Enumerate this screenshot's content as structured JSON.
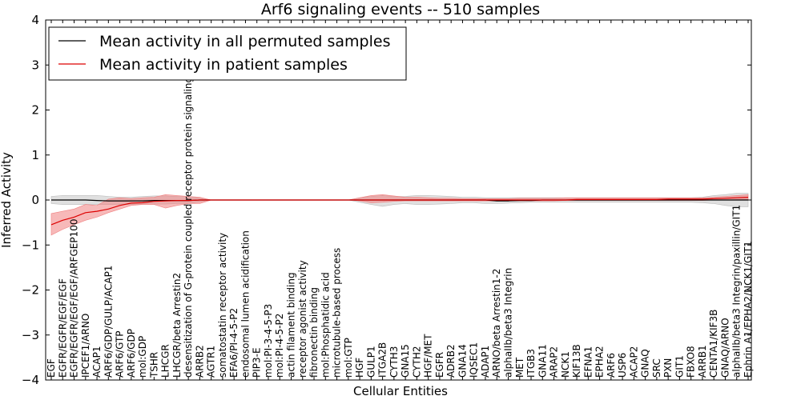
{
  "chart_data": {
    "type": "line",
    "title": "Arf6 signaling events -- 510 samples",
    "xlabel": "Cellular Entities",
    "ylabel": "Inferred Activity",
    "ylim": [
      -4,
      4
    ],
    "yticks": [
      -4,
      -3,
      -2,
      -1,
      0,
      1,
      2,
      3,
      4
    ],
    "ytick_labels": [
      "−4",
      "−3",
      "−2",
      "−1",
      "0",
      "1",
      "2",
      "3",
      "4"
    ],
    "grid": false,
    "legend_position": "top-left",
    "categories": [
      "EGF",
      "EGFR/EGFR/EGF/EGF",
      "EGFR/EGFR/EGF/EGF/ARFGEP100",
      "IPCEF1/ARNO",
      "ACAP1",
      "ARF6/GDP/GULP/ACAP1",
      "ARF6/GTP",
      "ARF6/GDP",
      "mol:GDP",
      "TSHR",
      "LHCGR",
      "LHCGR/beta Arrestin2",
      "desensitization of G-protein coupled receptor protein signaling pathway",
      "ARRB2",
      "AGTR1",
      "somatostatin receptor activity",
      "EFA6/PI-4-5-P2",
      "endosomal lumen acidification",
      "PIP3-E",
      "mol:PI-3-4-5-P3",
      "mol:PI-4-5-P2",
      "actin filament binding",
      "receptor agonist activity",
      "fibronectin binding",
      "mol:Phosphatidic acid",
      "microtubule-based process",
      "mol:GTP",
      "HGF",
      "GULP1",
      "ITGA2B",
      "CYTH3",
      "GNA15",
      "CYTH2",
      "HGF/MET",
      "EGFR",
      "ADRB2",
      "GNA14",
      "IQSEC1",
      "ADAP1",
      "ARNO/beta Arrestin1-2",
      "alphaIIb/beta3 Integrin",
      "MET",
      "ITGB3",
      "GNA11",
      "ARAP2",
      "NCK1",
      "KIF13B",
      "EFNA1",
      "EPHA2",
      "ARF6",
      "USP6",
      "ACAP2",
      "GNAQ",
      "SRC",
      "PXN",
      "GIT1",
      "FBXO8",
      "ARRB1",
      "CENTA1/KIF3B",
      "GNAQ/ARNO",
      "alphaIIb/beta3 Integrin/paxillin/GIT1",
      "Ephrin A1/EPHA2/NCK1/GIT1"
    ],
    "series": [
      {
        "name": "Mean activity in all permuted samples",
        "color": "#000000",
        "band_color": "#bbbbbb",
        "values": [
          0.0,
          0.0,
          0.0,
          0.0,
          -0.01,
          -0.02,
          -0.02,
          -0.02,
          -0.02,
          -0.01,
          -0.01,
          -0.01,
          -0.01,
          0.0,
          0.0,
          0.0,
          0.0,
          0.0,
          0.0,
          0.0,
          0.0,
          0.0,
          0.0,
          0.0,
          0.0,
          0.0,
          0.0,
          0.0,
          0.0,
          0.0,
          0.0,
          0.0,
          0.0,
          0.0,
          0.0,
          0.0,
          0.0,
          0.0,
          0.0,
          -0.02,
          -0.02,
          -0.01,
          -0.01,
          0.0,
          0.0,
          0.0,
          0.0,
          0.0,
          0.0,
          0.0,
          0.0,
          0.0,
          0.0,
          0.0,
          0.0,
          0.0,
          0.0,
          0.0,
          0.0,
          0.0,
          0.0,
          0.0
        ],
        "lower": [
          -0.08,
          -0.1,
          -0.1,
          -0.1,
          -0.1,
          -0.1,
          -0.1,
          -0.1,
          -0.09,
          -0.09,
          -0.09,
          -0.08,
          -0.08,
          -0.04,
          0.0,
          0.0,
          0.0,
          0.0,
          0.0,
          0.0,
          0.0,
          0.0,
          0.0,
          0.0,
          0.0,
          0.0,
          0.0,
          -0.05,
          -0.1,
          -0.14,
          -0.1,
          -0.08,
          -0.1,
          -0.1,
          -0.09,
          -0.08,
          -0.06,
          -0.06,
          -0.08,
          -0.08,
          -0.07,
          -0.06,
          -0.05,
          -0.05,
          -0.05,
          -0.05,
          -0.05,
          -0.05,
          -0.05,
          -0.05,
          -0.05,
          -0.05,
          -0.05,
          -0.05,
          -0.05,
          -0.05,
          -0.05,
          -0.06,
          -0.08,
          -0.12,
          -0.15,
          -0.15
        ],
        "upper": [
          0.08,
          0.1,
          0.1,
          0.1,
          0.1,
          0.08,
          0.06,
          0.06,
          0.08,
          0.09,
          0.09,
          0.08,
          0.08,
          0.04,
          0.0,
          0.0,
          0.0,
          0.0,
          0.0,
          0.0,
          0.0,
          0.0,
          0.0,
          0.0,
          0.0,
          0.0,
          0.0,
          0.05,
          0.08,
          0.1,
          0.08,
          0.08,
          0.1,
          0.1,
          0.09,
          0.08,
          0.06,
          0.06,
          0.05,
          0.05,
          0.05,
          0.05,
          0.05,
          0.05,
          0.05,
          0.05,
          0.05,
          0.05,
          0.05,
          0.05,
          0.05,
          0.05,
          0.05,
          0.05,
          0.05,
          0.05,
          0.05,
          0.06,
          0.1,
          0.12,
          0.15,
          0.15
        ]
      },
      {
        "name": "Mean activity in patient samples",
        "color": "#dd0000",
        "band_color": "#f08080",
        "values": [
          -0.55,
          -0.45,
          -0.38,
          -0.28,
          -0.25,
          -0.2,
          -0.12,
          -0.07,
          -0.06,
          -0.03,
          -0.02,
          -0.01,
          -0.01,
          0.0,
          0.0,
          0.0,
          0.0,
          0.0,
          0.0,
          0.0,
          0.0,
          0.0,
          0.0,
          0.0,
          0.0,
          0.0,
          0.0,
          0.0,
          0.0,
          0.0,
          0.0,
          0.0,
          0.0,
          0.0,
          0.0,
          0.0,
          0.0,
          0.0,
          0.0,
          0.0,
          0.0,
          0.0,
          0.0,
          0.0,
          0.0,
          0.0,
          0.01,
          0.01,
          0.01,
          0.01,
          0.01,
          0.01,
          0.01,
          0.01,
          0.02,
          0.02,
          0.02,
          0.02,
          0.03,
          0.04,
          0.05,
          0.06
        ],
        "lower": [
          -0.78,
          -0.65,
          -0.55,
          -0.45,
          -0.38,
          -0.28,
          -0.2,
          -0.12,
          -0.1,
          -0.1,
          -0.18,
          -0.12,
          -0.08,
          -0.08,
          0.0,
          0.0,
          0.0,
          0.0,
          0.0,
          0.0,
          0.0,
          0.0,
          0.0,
          0.0,
          0.0,
          0.0,
          0.0,
          -0.02,
          -0.06,
          -0.05,
          -0.03,
          -0.02,
          -0.02,
          -0.02,
          -0.02,
          -0.02,
          -0.02,
          -0.02,
          -0.02,
          -0.02,
          -0.02,
          -0.02,
          -0.02,
          -0.02,
          -0.02,
          -0.01,
          -0.01,
          -0.01,
          -0.01,
          -0.01,
          -0.01,
          -0.01,
          -0.01,
          -0.01,
          -0.01,
          -0.01,
          -0.01,
          -0.01,
          0.0,
          0.0,
          0.01,
          0.01
        ],
        "upper": [
          -0.3,
          -0.25,
          -0.2,
          -0.1,
          -0.12,
          0.02,
          0.05,
          0.03,
          0.05,
          0.06,
          0.12,
          0.1,
          0.08,
          0.06,
          0.0,
          0.0,
          0.0,
          0.0,
          0.0,
          0.0,
          0.0,
          0.0,
          0.0,
          0.0,
          0.0,
          0.0,
          0.0,
          0.05,
          0.1,
          0.12,
          0.09,
          0.06,
          0.06,
          0.05,
          0.04,
          0.04,
          0.03,
          0.03,
          0.03,
          0.03,
          0.03,
          0.04,
          0.04,
          0.04,
          0.04,
          0.05,
          0.05,
          0.05,
          0.05,
          0.05,
          0.05,
          0.05,
          0.05,
          0.05,
          0.05,
          0.05,
          0.05,
          0.05,
          0.06,
          0.08,
          0.1,
          0.12
        ]
      }
    ]
  }
}
